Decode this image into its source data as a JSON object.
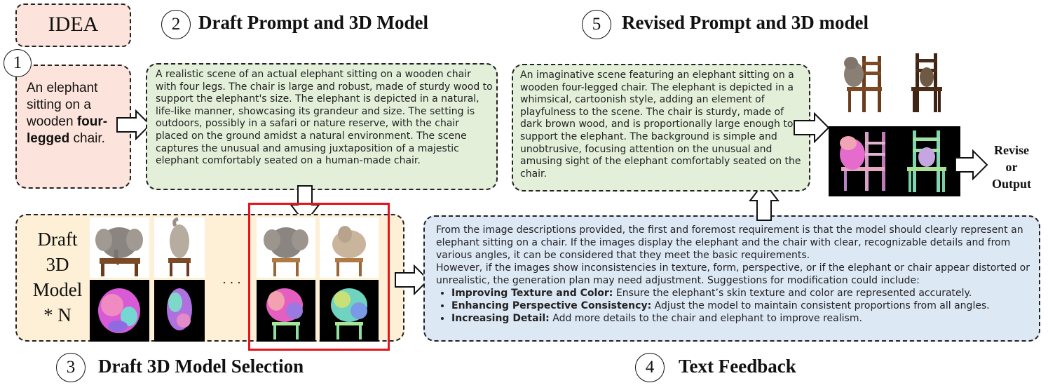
{
  "idea": {
    "label": "IDEA",
    "text_before": "An elephant sitting on a wooden ",
    "text_bold": "four-legged",
    "text_after": " chair."
  },
  "steps": {
    "s1": {
      "num": "1"
    },
    "s2": {
      "num": "2",
      "title": "Draft Prompt and 3D Model"
    },
    "s3": {
      "num": "3",
      "title": "Draft 3D Model Selection"
    },
    "s4": {
      "num": "4",
      "title": "Text Feedback"
    },
    "s5": {
      "num": "5",
      "title": "Revised Prompt and 3D model"
    }
  },
  "draft_prompt": "A realistic scene of an actual elephant sitting on a wooden chair with four legs. The chair is large and robust, made of sturdy wood to support the elephant's size. The elephant is depicted in a natural, life-like manner, showcasing its grandeur and size. The setting is outdoors, possibly in a safari or nature reserve, with the chair placed on the ground amidst a natural environment. The scene captures the unusual and amusing juxtaposition of a majestic elephant comfortably seated on a human-made chair.",
  "revised_prompt": "An imaginative scene featuring an elephant sitting on a wooden four-legged chair. The elephant is depicted in a whimsical, cartoonish style, adding an element of playfulness to the scene. The chair is sturdy, made of dark brown wood, and is proportionally large enough to support the elephant. The background is simple and unobtrusive, focusing attention on the unusual and amusing sight of the elephant comfortably seated on the chair.",
  "draft_models": {
    "line1": "Draft",
    "line2": "3D",
    "line3": "Model",
    "line4": "* N",
    "ellipsis": "· · ·"
  },
  "feedback": {
    "para1": "From the image descriptions provided, the first and foremost requirement is that the model should clearly represent an elephant sitting on a chair. If the images display the elephant and the chair with clear, recognizable details and from various angles, it can be considered that they meet the basic requirements.",
    "para2": "However, if the images show inconsistencies in texture, form, perspective, or if the elephant or chair appear distorted or unrealistic, the generation plan may need adjustment. Suggestions for modification could include:",
    "bullets": [
      {
        "bold": "Improving Texture and Color:",
        "text": " Ensure the elephant’s skin texture and color are represented accurately."
      },
      {
        "bold": "Enhancing Perspective Consistency:",
        "text": " Adjust the model to maintain consistent proportions from all angles."
      },
      {
        "bold": "Increasing Detail:",
        "text": " Add more details to the chair and elephant to improve realism."
      }
    ]
  },
  "decision": {
    "line1": "Revise",
    "line2": "or",
    "line3": "Output"
  },
  "colors": {
    "pink": "#fce4dc",
    "green": "#e3efd9",
    "yellow": "#fdf0d6",
    "blue": "#dde8f5",
    "red": "#e8141b"
  }
}
